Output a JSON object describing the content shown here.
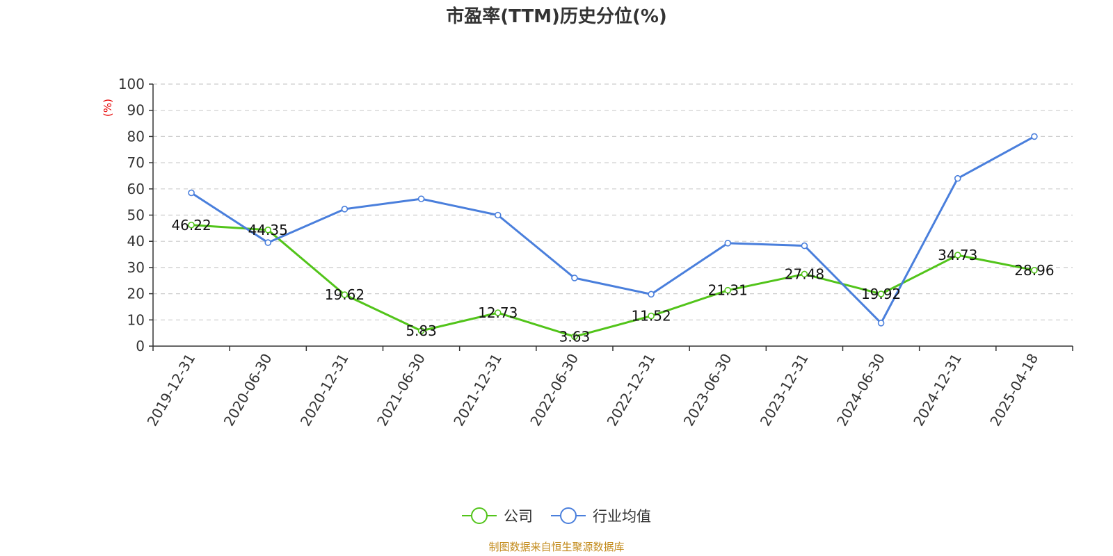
{
  "chart_data": {
    "type": "line",
    "title": "市盈率(TTM)历史分位(%)",
    "ylabel": "(%)",
    "xlabel": "",
    "ylim": [
      0,
      100
    ],
    "yticks": [
      0,
      10,
      20,
      30,
      40,
      50,
      60,
      70,
      80,
      90,
      100
    ],
    "grid": "horizontal-dashed",
    "legend_position": "bottom-center",
    "categories": [
      "2019-12-31",
      "2020-06-30",
      "2020-12-31",
      "2021-06-30",
      "2021-12-31",
      "2022-06-30",
      "2022-12-31",
      "2023-06-30",
      "2023-12-31",
      "2024-06-30",
      "2024-12-31",
      "2025-04-18"
    ],
    "series": [
      {
        "name": "公司",
        "color": "#52c41a",
        "show_labels": true,
        "values": [
          46.22,
          44.35,
          19.62,
          5.83,
          12.73,
          3.63,
          11.52,
          21.31,
          27.48,
          19.92,
          34.73,
          28.96
        ]
      },
      {
        "name": "行业均值",
        "color": "#4a7fdc",
        "show_labels": false,
        "values": [
          58.5,
          39.5,
          52.3,
          56.2,
          50.0,
          26.0,
          19.8,
          39.3,
          38.3,
          8.8,
          64.0,
          80.0
        ]
      }
    ]
  },
  "footer": {
    "source": "制图数据来自恒生聚源数据库"
  }
}
